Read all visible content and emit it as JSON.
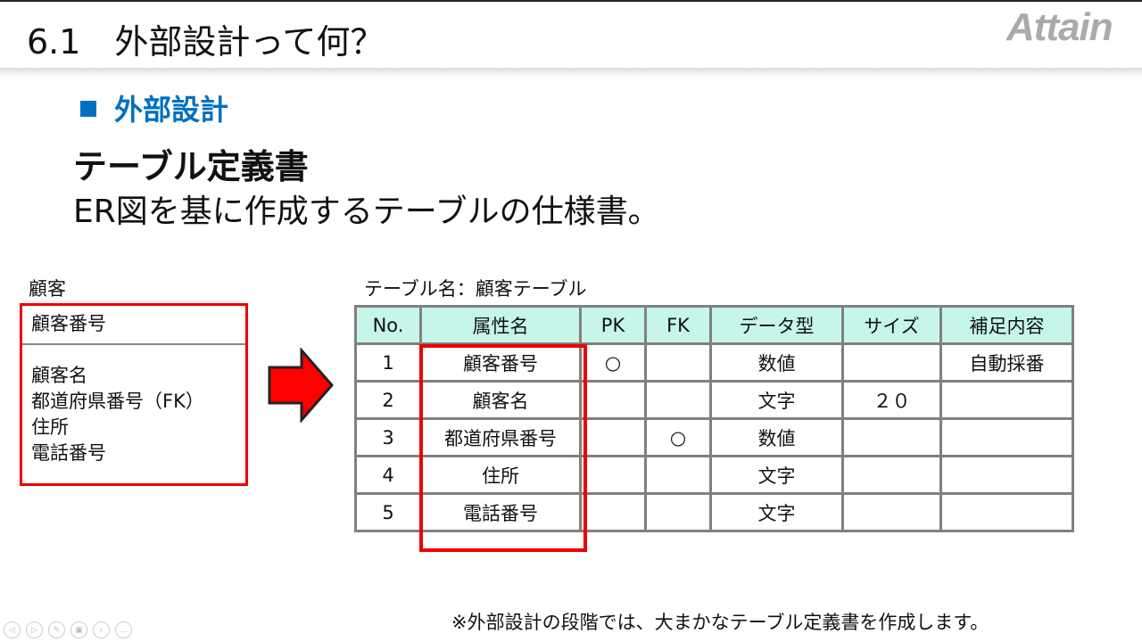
{
  "header": {
    "title": "6.1　外部設計って何？",
    "logo": "Attain"
  },
  "section": {
    "label": "外部設計"
  },
  "heading": "テーブル定義書",
  "subheading": "ER図を基に作成するテーブルの仕様書。",
  "er": {
    "entity": "顧客",
    "pk": "顧客番号",
    "attributes": [
      "顧客名",
      "都道府県番号（FK）",
      "住所",
      "電話番号"
    ]
  },
  "table": {
    "name": "テーブル名：顧客テーブル",
    "columns": [
      "No.",
      "属性名",
      "PK",
      "FK",
      "データ型",
      "サイズ",
      "補足内容"
    ],
    "rows": [
      [
        "1",
        "顧客番号",
        "○",
        "",
        "数値",
        "",
        "自動採番"
      ],
      [
        "2",
        "顧客名",
        "",
        "",
        "文字",
        "２０",
        ""
      ],
      [
        "3",
        "都道府県番号",
        "",
        "○",
        "数値",
        "",
        ""
      ],
      [
        "4",
        "住所",
        "",
        "",
        "文字",
        "",
        ""
      ],
      [
        "5",
        "電話番号",
        "",
        "",
        "文字",
        "",
        ""
      ]
    ]
  },
  "note": "※外部設計の段階では、大まかなテーブル定義書を作成します。",
  "colors": {
    "accent": "#0070c0",
    "highlight": "#e00000",
    "header_bg": "#c6f5e9"
  },
  "controls": [
    "previous-icon",
    "next-icon",
    "pen-icon",
    "slides-icon",
    "zoom-icon",
    "more-icon"
  ]
}
